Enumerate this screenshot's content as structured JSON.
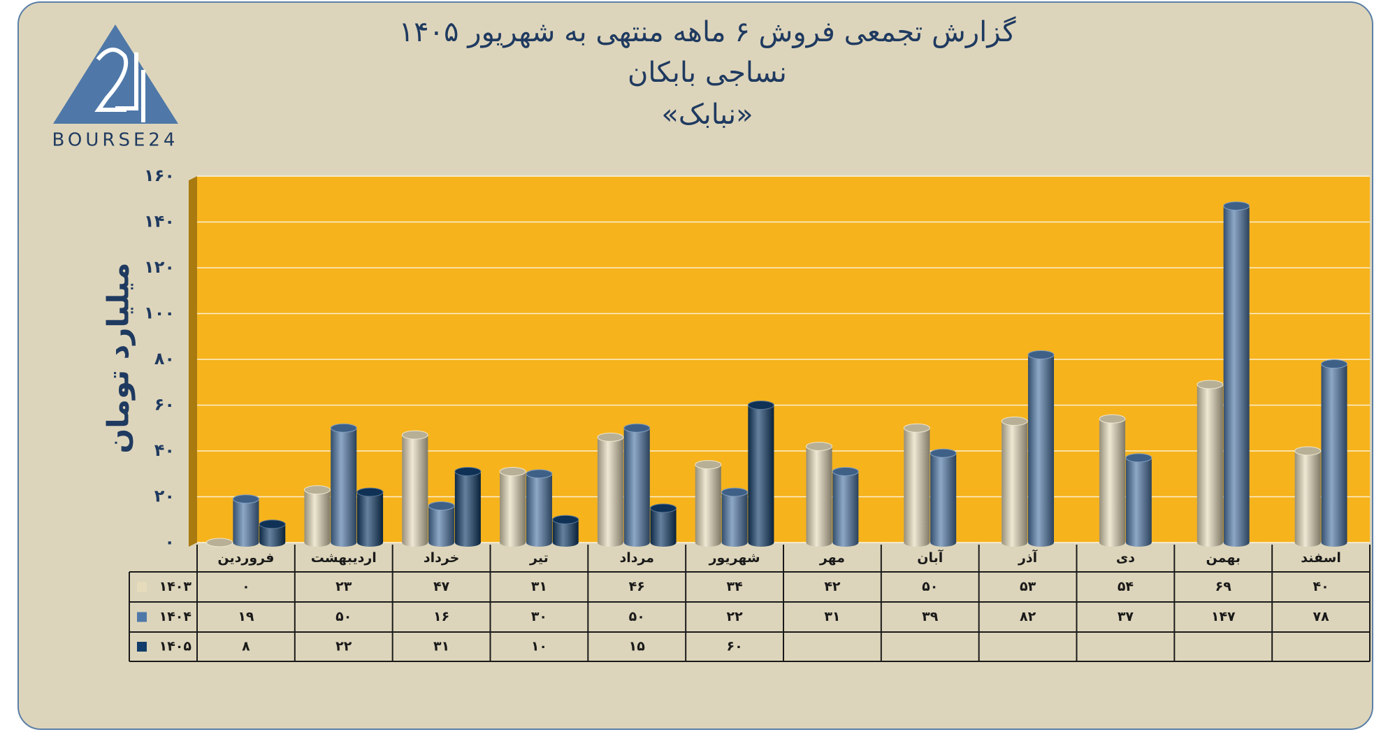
{
  "chart_data": {
    "type": "bar",
    "title": "گزارش تجمعی فروش ۶ ماهه منتهی به شهریور ۱۴۰۵",
    "subtitle": "نساجی بابکان",
    "symbol": "«نبابک»",
    "logo_text": "BOURSE24",
    "y_label": "میلیارد تومان",
    "categories": [
      "فروردین",
      "اردیبهشت",
      "خرداد",
      "تیر",
      "مرداد",
      "شهریور",
      "مهر",
      "آبان",
      "آذر",
      "دی",
      "بهمن",
      "اسفند"
    ],
    "series": [
      {
        "name": "۱۴۰۳",
        "color": "#e6dcbc",
        "values": [
          0,
          23,
          47,
          31,
          46,
          34,
          42,
          50,
          53,
          54,
          69,
          40
        ],
        "value_labels": [
          "۰",
          "۲۳",
          "۴۷",
          "۳۱",
          "۴۶",
          "۳۴",
          "۴۲",
          "۵۰",
          "۵۳",
          "۵۴",
          "۶۹",
          "۴۰"
        ]
      },
      {
        "name": "۱۴۰۴",
        "color": "#4f78a8",
        "values": [
          19,
          50,
          16,
          30,
          50,
          22,
          31,
          39,
          82,
          37,
          147,
          78
        ],
        "value_labels": [
          "۱۹",
          "۵۰",
          "۱۶",
          "۳۰",
          "۵۰",
          "۲۲",
          "۳۱",
          "۳۹",
          "۸۲",
          "۳۷",
          "۱۴۷",
          "۷۸"
        ]
      },
      {
        "name": "۱۴۰۵",
        "color": "#123d6a",
        "values": [
          8,
          22,
          31,
          10,
          15,
          60,
          null,
          null,
          null,
          null,
          null,
          null
        ],
        "value_labels": [
          "۸",
          "۲۲",
          "۳۱",
          "۱۰",
          "۱۵",
          "۶۰",
          null,
          null,
          null,
          null,
          null,
          null
        ]
      }
    ],
    "ylim": [
      0,
      160
    ],
    "yticks": [
      {
        "value": 0,
        "label": "۰"
      },
      {
        "value": 20,
        "label": "۲۰"
      },
      {
        "value": 40,
        "label": "۴۰"
      },
      {
        "value": 60,
        "label": "۶۰"
      },
      {
        "value": 80,
        "label": "۸۰"
      },
      {
        "value": 100,
        "label": "۱۰۰"
      },
      {
        "value": 120,
        "label": "۱۲۰"
      },
      {
        "value": 140,
        "label": "۱۴۰"
      },
      {
        "value": 160,
        "label": "۱۶۰"
      }
    ],
    "grid": true,
    "plot_background": "#f6b31c"
  }
}
